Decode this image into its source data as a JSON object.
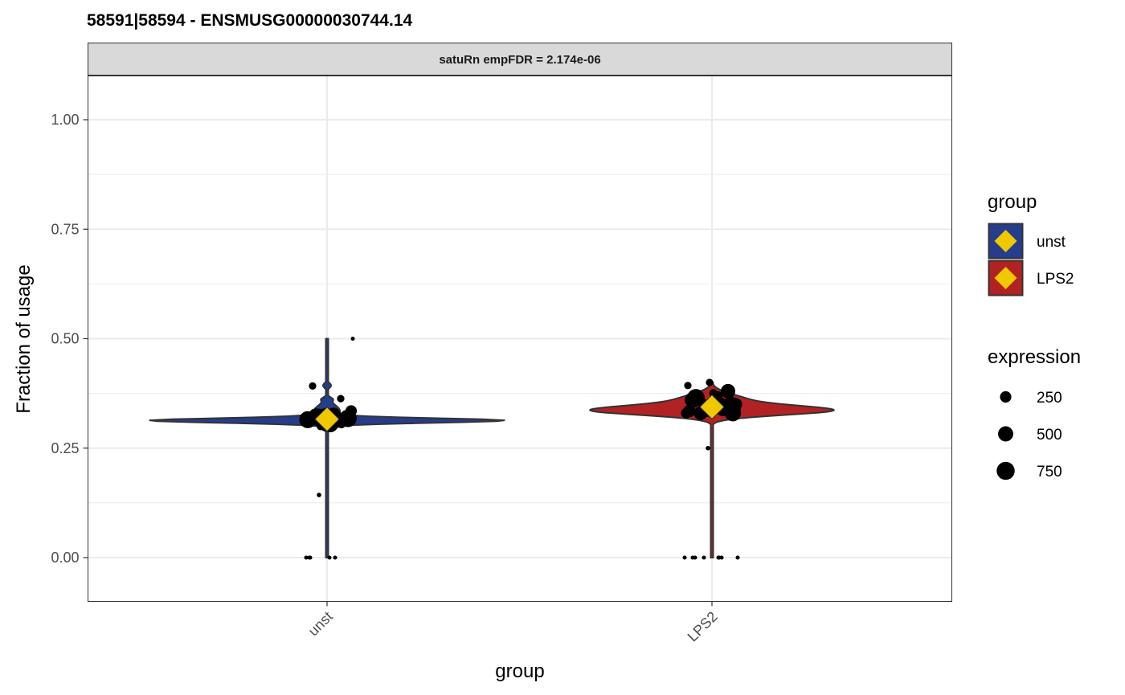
{
  "chart_data": {
    "type": "violin",
    "title": "58591|58594  -  ENSMUSG00000030744.14",
    "facet_label": "satuRn empFDR = 2.174e-06",
    "xlabel": "group",
    "ylabel": "Fraction of usage",
    "categories": [
      "unst",
      "LPS2"
    ],
    "ylim": [
      -0.1,
      1.1
    ],
    "y_ticks": [
      0.0,
      0.25,
      0.5,
      0.75,
      1.0
    ],
    "y_tick_labels": [
      "0.00",
      "0.25",
      "0.50",
      "0.75",
      "1.00"
    ],
    "grid": true,
    "legend_position": "right",
    "colors": {
      "unst": "#253d8c",
      "LPS2": "#b22222",
      "mean_marker": "#f0c800",
      "points": "#000000",
      "strip_bg": "#d9d9d9",
      "grid": "#ebebeb"
    },
    "series": [
      {
        "name": "unst",
        "mean": 0.316,
        "violin_ymin": 0.0,
        "violin_ymax": 0.5,
        "violin_body": [
          0.3,
          0.33
        ],
        "points": [
          {
            "x": -0.12,
            "y": 0.315,
            "e": 650
          },
          {
            "x": -0.07,
            "y": 0.325,
            "e": 400
          },
          {
            "x": -0.05,
            "y": 0.32,
            "e": 700
          },
          {
            "x": -0.03,
            "y": 0.312,
            "e": 150
          },
          {
            "x": -0.01,
            "y": 0.33,
            "e": 200
          },
          {
            "x": 0.0,
            "y": 0.31,
            "e": 900
          },
          {
            "x": 0.01,
            "y": 0.318,
            "e": 850
          },
          {
            "x": 0.02,
            "y": 0.305,
            "e": 600
          },
          {
            "x": -0.04,
            "y": 0.3,
            "e": 100
          },
          {
            "x": 0.04,
            "y": 0.325,
            "e": 500
          },
          {
            "x": 0.06,
            "y": 0.31,
            "e": 300
          },
          {
            "x": 0.08,
            "y": 0.32,
            "e": 150
          },
          {
            "x": 0.1,
            "y": 0.315,
            "e": 350
          },
          {
            "x": 0.13,
            "y": 0.318,
            "e": 700
          },
          {
            "x": 0.09,
            "y": 0.305,
            "e": 120
          },
          {
            "x": 0.15,
            "y": 0.335,
            "e": 250
          },
          {
            "x": -0.09,
            "y": 0.31,
            "e": 80
          },
          {
            "x": 0.085,
            "y": 0.363,
            "e": 80
          },
          {
            "x": -0.09,
            "y": 0.392,
            "e": 80
          },
          {
            "x": 0.16,
            "y": 0.5,
            "e": 10
          },
          {
            "x": -0.05,
            "y": 0.143,
            "e": 15
          },
          {
            "x": -0.13,
            "y": 0.0,
            "e": 10
          },
          {
            "x": -0.11,
            "y": 0.0,
            "e": 10
          },
          {
            "x": -0.105,
            "y": 0.0,
            "e": 10
          },
          {
            "x": 0.015,
            "y": 0.0,
            "e": 10
          },
          {
            "x": 0.05,
            "y": 0.0,
            "e": 10
          }
        ]
      },
      {
        "name": "LPS2",
        "mean": 0.344,
        "violin_ymin": 0.0,
        "violin_ymax": 0.4,
        "violin_body": [
          0.31,
          0.38
        ],
        "points": [
          {
            "x": -0.14,
            "y": 0.335,
            "e": 300
          },
          {
            "x": -0.12,
            "y": 0.36,
            "e": 550
          },
          {
            "x": -0.1,
            "y": 0.365,
            "e": 700
          },
          {
            "x": -0.07,
            "y": 0.33,
            "e": 400
          },
          {
            "x": -0.05,
            "y": 0.35,
            "e": 200
          },
          {
            "x": -0.03,
            "y": 0.34,
            "e": 600
          },
          {
            "x": 0.02,
            "y": 0.355,
            "e": 200
          },
          {
            "x": 0.04,
            "y": 0.37,
            "e": 120
          },
          {
            "x": 0.07,
            "y": 0.34,
            "e": 500
          },
          {
            "x": 0.1,
            "y": 0.38,
            "e": 450
          },
          {
            "x": 0.12,
            "y": 0.345,
            "e": 900
          },
          {
            "x": 0.13,
            "y": 0.33,
            "e": 600
          },
          {
            "x": 0.15,
            "y": 0.35,
            "e": 300
          },
          {
            "x": -0.16,
            "y": 0.33,
            "e": 200
          },
          {
            "x": 0.05,
            "y": 0.355,
            "e": 200
          },
          {
            "x": 0.01,
            "y": 0.375,
            "e": 120
          },
          {
            "x": -0.15,
            "y": 0.393,
            "e": 80
          },
          {
            "x": -0.015,
            "y": 0.4,
            "e": 80
          },
          {
            "x": -0.025,
            "y": 0.25,
            "e": 15
          },
          {
            "x": -0.17,
            "y": 0.0,
            "e": 10
          },
          {
            "x": -0.12,
            "y": 0.0,
            "e": 10
          },
          {
            "x": -0.105,
            "y": 0.0,
            "e": 10
          },
          {
            "x": -0.05,
            "y": 0.0,
            "e": 10
          },
          {
            "x": 0.04,
            "y": 0.0,
            "e": 10
          },
          {
            "x": 0.045,
            "y": 0.0,
            "e": 10
          },
          {
            "x": 0.06,
            "y": 0.0,
            "e": 10
          },
          {
            "x": 0.16,
            "y": 0.0,
            "e": 10
          }
        ]
      }
    ],
    "legend": {
      "fill_title": "group",
      "fill_items": [
        "unst",
        "LPS2"
      ],
      "size_title": "expression",
      "size_items": [
        250,
        500,
        750
      ]
    }
  }
}
